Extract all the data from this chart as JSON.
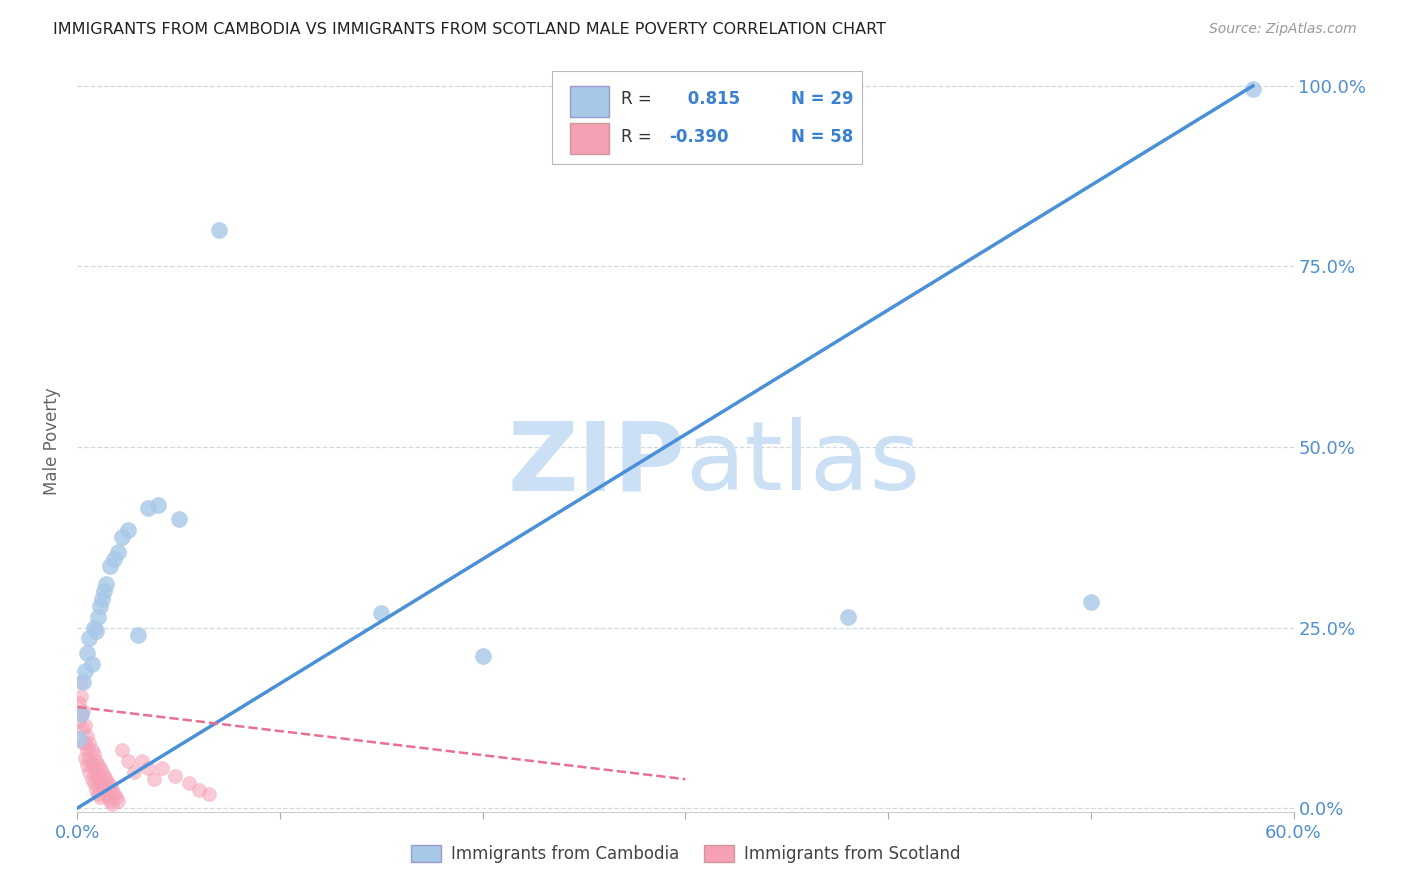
{
  "title": "IMMIGRANTS FROM CAMBODIA VS IMMIGRANTS FROM SCOTLAND MALE POVERTY CORRELATION CHART",
  "source": "Source: ZipAtlas.com",
  "ylabel_label": "Male Poverty",
  "R_cambodia": 0.815,
  "N_cambodia": 29,
  "R_scotland": -0.39,
  "N_scotland": 58,
  "color_cambodia": "#a8c8e8",
  "color_scotland": "#f5a0b5",
  "line_color_cambodia": "#4a90d9",
  "line_color_scotland": "#e87090",
  "watermark_color": "#cce0f5",
  "background_color": "#ffffff",
  "grid_color": "#d0d8e0",
  "tick_color": "#5090d0",
  "xlim": [
    0.0,
    0.6
  ],
  "ylim": [
    0.0,
    1.0
  ],
  "yticks": [
    0.0,
    0.25,
    0.5,
    0.75,
    1.0
  ],
  "ytick_labels": [
    "0.0%",
    "25.0%",
    "50.0%",
    "75.0%",
    "100.0%"
  ],
  "xticks": [
    0.0,
    0.1,
    0.2,
    0.3,
    0.4,
    0.5,
    0.6
  ],
  "xtick_labels_show": [
    "0.0%",
    "",
    "",
    "",
    "",
    "",
    "60.0%"
  ],
  "cambodia_scatter": [
    [
      0.001,
      0.095
    ],
    [
      0.002,
      0.13
    ],
    [
      0.003,
      0.175
    ],
    [
      0.004,
      0.19
    ],
    [
      0.005,
      0.215
    ],
    [
      0.006,
      0.235
    ],
    [
      0.007,
      0.2
    ],
    [
      0.008,
      0.25
    ],
    [
      0.009,
      0.245
    ],
    [
      0.01,
      0.265
    ],
    [
      0.011,
      0.28
    ],
    [
      0.012,
      0.29
    ],
    [
      0.013,
      0.3
    ],
    [
      0.014,
      0.31
    ],
    [
      0.016,
      0.335
    ],
    [
      0.018,
      0.345
    ],
    [
      0.02,
      0.355
    ],
    [
      0.022,
      0.375
    ],
    [
      0.025,
      0.385
    ],
    [
      0.03,
      0.24
    ],
    [
      0.035,
      0.415
    ],
    [
      0.04,
      0.42
    ],
    [
      0.05,
      0.4
    ],
    [
      0.07,
      0.8
    ],
    [
      0.15,
      0.27
    ],
    [
      0.2,
      0.21
    ],
    [
      0.38,
      0.265
    ],
    [
      0.5,
      0.285
    ],
    [
      0.58,
      0.995
    ]
  ],
  "scotland_scatter": [
    [
      0.001,
      0.145
    ],
    [
      0.001,
      0.12
    ],
    [
      0.002,
      0.175
    ],
    [
      0.002,
      0.155
    ],
    [
      0.002,
      0.13
    ],
    [
      0.003,
      0.135
    ],
    [
      0.003,
      0.11
    ],
    [
      0.003,
      0.09
    ],
    [
      0.004,
      0.115
    ],
    [
      0.004,
      0.09
    ],
    [
      0.004,
      0.07
    ],
    [
      0.005,
      0.1
    ],
    [
      0.005,
      0.08
    ],
    [
      0.005,
      0.06
    ],
    [
      0.006,
      0.09
    ],
    [
      0.006,
      0.07
    ],
    [
      0.006,
      0.05
    ],
    [
      0.007,
      0.08
    ],
    [
      0.007,
      0.06
    ],
    [
      0.007,
      0.04
    ],
    [
      0.008,
      0.075
    ],
    [
      0.008,
      0.055
    ],
    [
      0.008,
      0.035
    ],
    [
      0.009,
      0.065
    ],
    [
      0.009,
      0.045
    ],
    [
      0.009,
      0.025
    ],
    [
      0.01,
      0.06
    ],
    [
      0.01,
      0.04
    ],
    [
      0.01,
      0.02
    ],
    [
      0.011,
      0.055
    ],
    [
      0.011,
      0.035
    ],
    [
      0.011,
      0.015
    ],
    [
      0.012,
      0.05
    ],
    [
      0.012,
      0.03
    ],
    [
      0.013,
      0.045
    ],
    [
      0.013,
      0.025
    ],
    [
      0.014,
      0.04
    ],
    [
      0.014,
      0.02
    ],
    [
      0.015,
      0.035
    ],
    [
      0.015,
      0.015
    ],
    [
      0.016,
      0.03
    ],
    [
      0.016,
      0.01
    ],
    [
      0.017,
      0.025
    ],
    [
      0.017,
      0.005
    ],
    [
      0.018,
      0.02
    ],
    [
      0.019,
      0.015
    ],
    [
      0.02,
      0.01
    ],
    [
      0.022,
      0.08
    ],
    [
      0.025,
      0.065
    ],
    [
      0.028,
      0.05
    ],
    [
      0.032,
      0.065
    ],
    [
      0.035,
      0.055
    ],
    [
      0.038,
      0.04
    ],
    [
      0.042,
      0.055
    ],
    [
      0.048,
      0.045
    ],
    [
      0.055,
      0.035
    ],
    [
      0.06,
      0.025
    ],
    [
      0.065,
      0.02
    ]
  ],
  "cambodia_reg_line": [
    [
      0.0,
      0.0
    ],
    [
      0.58,
      1.0
    ]
  ],
  "scotland_reg_line": [
    [
      0.0,
      0.14
    ],
    [
      0.3,
      0.04
    ]
  ]
}
